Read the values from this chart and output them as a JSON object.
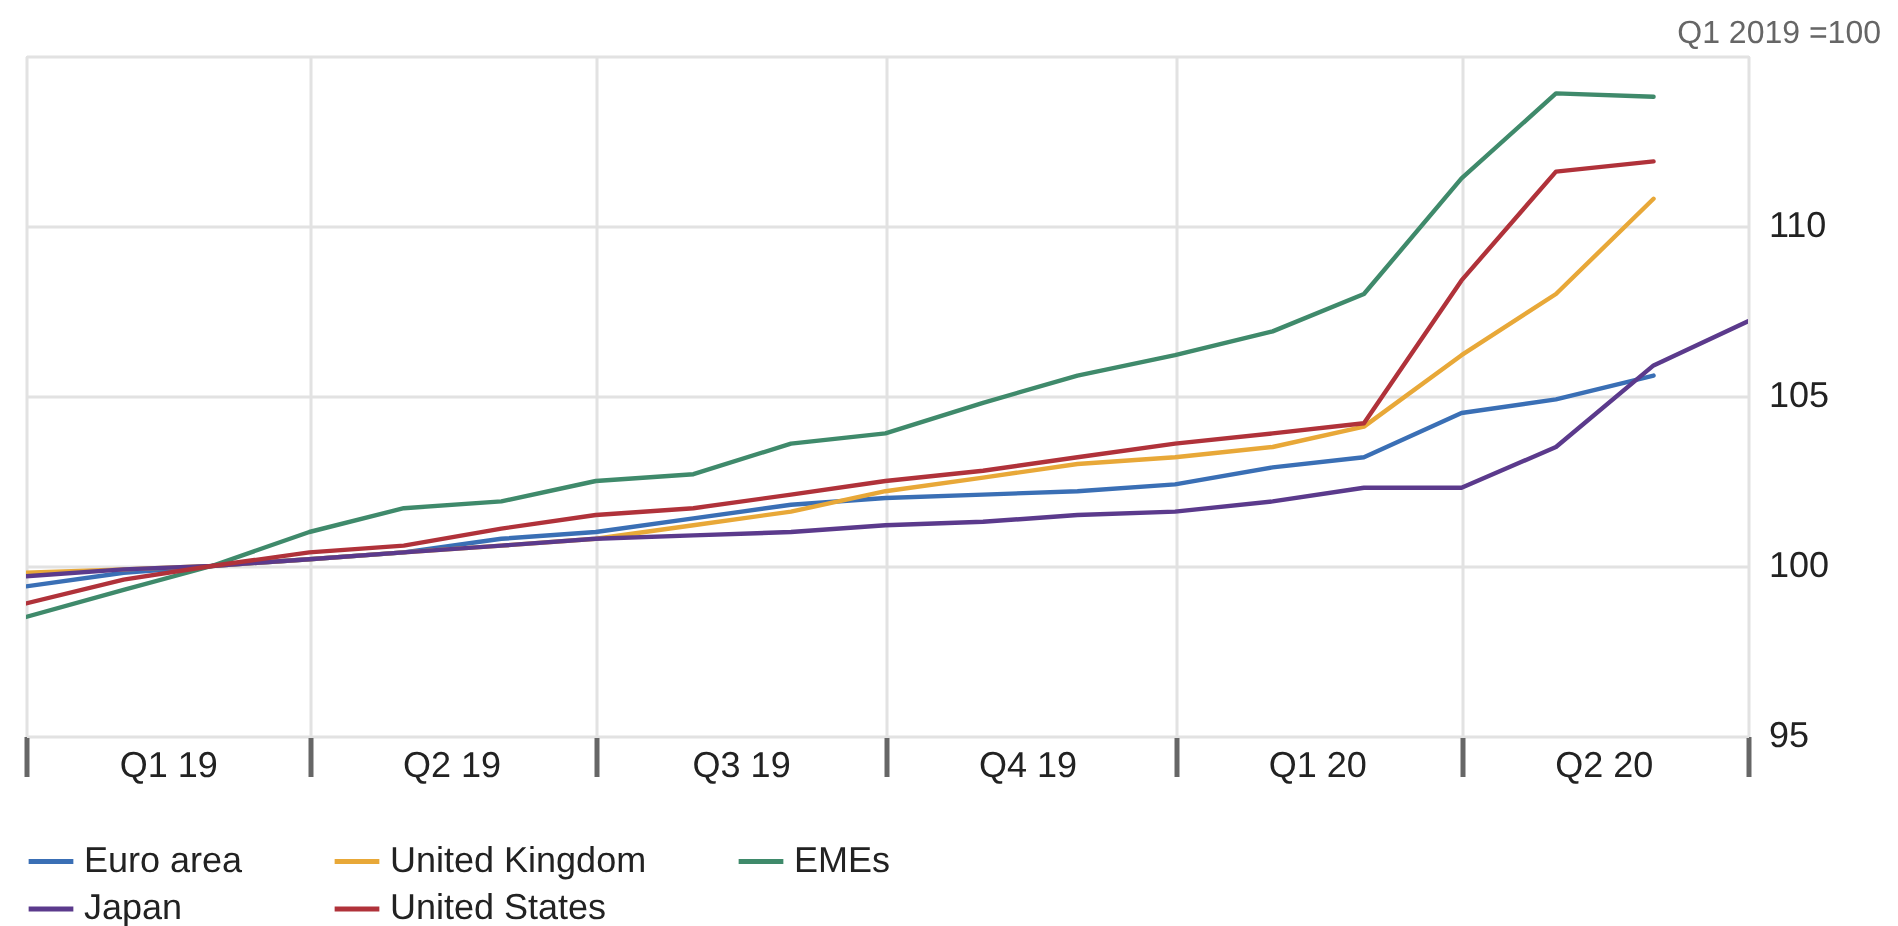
{
  "chart_data": {
    "type": "line",
    "ylabel": "Q1 2019 =100",
    "x": [
      "2019-01",
      "2019-02",
      "2019-03",
      "2019-04",
      "2019-05",
      "2019-06",
      "2019-07",
      "2019-08",
      "2019-09",
      "2019-10",
      "2019-11",
      "2019-12",
      "2020-01",
      "2020-02",
      "2020-03",
      "2020-04",
      "2020-05",
      "2020-06"
    ],
    "xlim": [
      "2019-01",
      "2020-07"
    ],
    "xticks": [
      {
        "value": "2019-01",
        "label": null
      },
      {
        "value": "2019-02-15",
        "label": "Q1 19"
      },
      {
        "value": "2019-04",
        "label": null
      },
      {
        "value": "2019-05-16",
        "label": "Q2 19"
      },
      {
        "value": "2019-07",
        "label": null
      },
      {
        "value": "2019-08-16",
        "label": "Q3 19"
      },
      {
        "value": "2019-10",
        "label": null
      },
      {
        "value": "2019-11-15",
        "label": "Q4 19"
      },
      {
        "value": "2020-01",
        "label": null
      },
      {
        "value": "2020-02-15",
        "label": "Q1 20"
      },
      {
        "value": "2020-04",
        "label": null
      },
      {
        "value": "2020-05-16",
        "label": "Q2 20"
      },
      {
        "value": "2020-07",
        "label": null
      }
    ],
    "ylim": [
      95,
      115
    ],
    "yticks": [
      95,
      100,
      105,
      110,
      {
        "value": 115,
        "label": null
      }
    ],
    "grid": true,
    "legend": "bottom",
    "series": [
      {
        "name": "Euro area",
        "color": "#3a6fb5",
        "values": [
          99.4,
          99.8,
          100,
          100.2,
          100.4,
          100.8,
          101.0,
          101.4,
          101.8,
          102.0,
          102.1,
          102.2,
          102.4,
          102.9,
          103.2,
          104.5,
          104.9,
          105.6
        ]
      },
      {
        "name": "United Kingdom",
        "color": "#e8a838",
        "values": [
          99.8,
          99.9,
          100,
          100.2,
          100.4,
          100.6,
          100.8,
          101.2,
          101.6,
          102.2,
          102.6,
          103.0,
          103.2,
          103.5,
          104.1,
          106.2,
          108.0,
          110.8
        ]
      },
      {
        "name": "EMEs",
        "color": "#3f8a6b",
        "values": [
          98.5,
          99.3,
          100,
          101.0,
          101.7,
          101.9,
          102.5,
          102.7,
          103.6,
          103.9,
          104.8,
          105.6,
          106.2,
          106.9,
          108.0,
          111.4,
          113.9,
          113.8
        ]
      },
      {
        "name": "Japan",
        "color": "#5b3a8c",
        "x": [
          "2019-01",
          "2019-02",
          "2019-03",
          "2019-04",
          "2019-05",
          "2019-06",
          "2019-07",
          "2019-08",
          "2019-09",
          "2019-10",
          "2019-11",
          "2019-12",
          "2020-01",
          "2020-02",
          "2020-03",
          "2020-04",
          "2020-05",
          "2020-06",
          "2020-07"
        ],
        "values": [
          99.7,
          99.9,
          100,
          100.2,
          100.4,
          100.6,
          100.8,
          100.9,
          101.0,
          101.2,
          101.3,
          101.5,
          101.6,
          101.9,
          102.3,
          102.3,
          103.5,
          105.9,
          107.2
        ]
      },
      {
        "name": "United States",
        "color": "#b0323a",
        "values": [
          98.9,
          99.6,
          100,
          100.4,
          100.6,
          101.1,
          101.5,
          101.7,
          102.1,
          102.5,
          102.8,
          103.2,
          103.6,
          103.9,
          104.2,
          108.4,
          111.6,
          111.9
        ]
      }
    ]
  }
}
